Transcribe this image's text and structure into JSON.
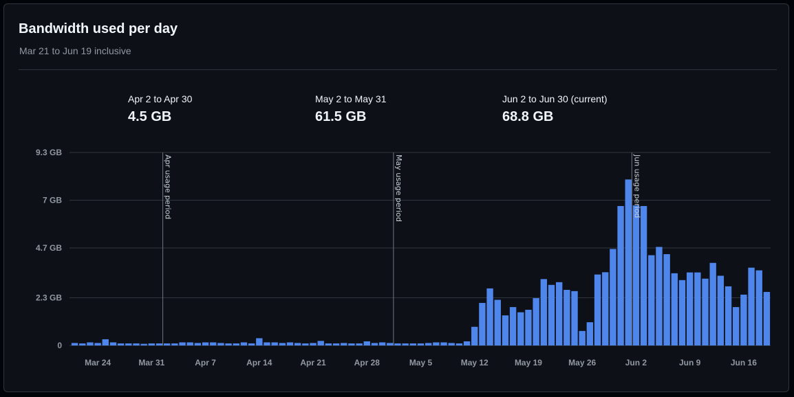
{
  "header": {
    "title": "Bandwidth used per day",
    "subtitle": "Mar 21 to Jun 19 inclusive"
  },
  "periods": [
    {
      "label": "Apr 2 to Apr 30",
      "value": "4.5 GB"
    },
    {
      "label": "May 2 to May 31",
      "value": "61.5 GB"
    },
    {
      "label": "Jun 2 to Jun 30 (current)",
      "value": "68.8 GB"
    }
  ],
  "colors": {
    "bar": "#4f86ec",
    "grid": "#30363d",
    "marker": "#6e7681"
  },
  "chart_data": {
    "type": "bar",
    "title": "Bandwidth used per day",
    "subtitle": "Mar 21 to Jun 19 inclusive",
    "xlabel": "",
    "ylabel": "",
    "unit": "GB",
    "ylim": [
      0,
      9.3
    ],
    "y_ticks": [
      {
        "value": 0,
        "label": "0"
      },
      {
        "value": 2.3,
        "label": "2.3 GB"
      },
      {
        "value": 4.7,
        "label": "4.7 GB"
      },
      {
        "value": 7,
        "label": "7 GB"
      },
      {
        "value": 9.3,
        "label": "9.3 GB"
      }
    ],
    "x_ticks": [
      {
        "index": 3,
        "label": "Mar 24"
      },
      {
        "index": 10,
        "label": "Mar 31"
      },
      {
        "index": 17,
        "label": "Apr 7"
      },
      {
        "index": 24,
        "label": "Apr 14"
      },
      {
        "index": 31,
        "label": "Apr 21"
      },
      {
        "index": 38,
        "label": "Apr 28"
      },
      {
        "index": 45,
        "label": "May 5"
      },
      {
        "index": 52,
        "label": "May 12"
      },
      {
        "index": 59,
        "label": "May 19"
      },
      {
        "index": 66,
        "label": "May 26"
      },
      {
        "index": 73,
        "label": "Jun 2"
      },
      {
        "index": 80,
        "label": "Jun 9"
      },
      {
        "index": 87,
        "label": "Jun 16"
      }
    ],
    "markers": [
      {
        "index": 12,
        "label": "Apr usage period"
      },
      {
        "index": 42,
        "label": "May usage period"
      },
      {
        "index": 73,
        "label": "Jun usage period"
      }
    ],
    "categories": [
      "Mar 21",
      "Mar 22",
      "Mar 23",
      "Mar 24",
      "Mar 25",
      "Mar 26",
      "Mar 27",
      "Mar 28",
      "Mar 29",
      "Mar 30",
      "Mar 31",
      "Apr 1",
      "Apr 2",
      "Apr 3",
      "Apr 4",
      "Apr 5",
      "Apr 6",
      "Apr 7",
      "Apr 8",
      "Apr 9",
      "Apr 10",
      "Apr 11",
      "Apr 12",
      "Apr 13",
      "Apr 14",
      "Apr 15",
      "Apr 16",
      "Apr 17",
      "Apr 18",
      "Apr 19",
      "Apr 20",
      "Apr 21",
      "Apr 22",
      "Apr 23",
      "Apr 24",
      "Apr 25",
      "Apr 26",
      "Apr 27",
      "Apr 28",
      "Apr 29",
      "Apr 30",
      "May 1",
      "May 2",
      "May 3",
      "May 4",
      "May 5",
      "May 6",
      "May 7",
      "May 8",
      "May 9",
      "May 10",
      "May 11",
      "May 12",
      "May 13",
      "May 14",
      "May 15",
      "May 16",
      "May 17",
      "May 18",
      "May 19",
      "May 20",
      "May 21",
      "May 22",
      "May 23",
      "May 24",
      "May 25",
      "May 26",
      "May 27",
      "May 28",
      "May 29",
      "May 30",
      "May 31",
      "Jun 1",
      "Jun 2",
      "Jun 3",
      "Jun 4",
      "Jun 5",
      "Jun 6",
      "Jun 7",
      "Jun 8",
      "Jun 9",
      "Jun 10",
      "Jun 11",
      "Jun 12",
      "Jun 13",
      "Jun 14",
      "Jun 15",
      "Jun 16",
      "Jun 17",
      "Jun 18",
      "Jun 19"
    ],
    "values": [
      0.12,
      0.1,
      0.15,
      0.12,
      0.3,
      0.15,
      0.1,
      0.1,
      0.1,
      0.08,
      0.1,
      0.1,
      0.1,
      0.1,
      0.15,
      0.15,
      0.12,
      0.15,
      0.15,
      0.12,
      0.1,
      0.1,
      0.15,
      0.1,
      0.35,
      0.15,
      0.15,
      0.12,
      0.15,
      0.12,
      0.1,
      0.12,
      0.22,
      0.1,
      0.1,
      0.12,
      0.1,
      0.1,
      0.2,
      0.12,
      0.15,
      0.12,
      0.1,
      0.1,
      0.1,
      0.1,
      0.12,
      0.15,
      0.15,
      0.12,
      0.1,
      0.2,
      0.9,
      2.05,
      2.75,
      2.2,
      1.45,
      1.85,
      1.6,
      1.72,
      2.28,
      3.2,
      2.92,
      3.05,
      2.68,
      2.62,
      0.7,
      1.12,
      3.42,
      3.53,
      4.65,
      6.72,
      8.0,
      6.75,
      6.72,
      4.35,
      4.75,
      4.4,
      3.48,
      3.15,
      3.52,
      3.52,
      3.22,
      3.98,
      3.36,
      2.85,
      1.85,
      2.45,
      3.75,
      3.62,
      2.58
    ]
  }
}
